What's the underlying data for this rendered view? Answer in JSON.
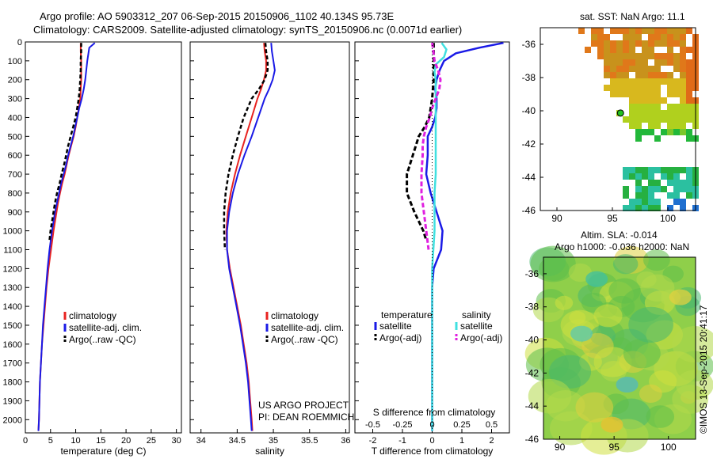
{
  "header": {
    "line1": "Argo profile: AO 5903312_207 06-Sep-2015 20150906_1102 40.134S 95.73E",
    "line2": "Climatology: CARS2009. Satellite-adjusted climatology: synTS_20150906.nc (0.0071d earlier)"
  },
  "panel_titles": {
    "sst": "sat. SST: NaN Argo: 11.1",
    "sla_line1": "Altim. SLA: -0.014",
    "sla_line2": "Argo h1000: -0.036 h2000: NaN"
  },
  "credits": {
    "project": "US ARGO PROJECT",
    "pi": "PI: DEAN ROEMMICH",
    "imos": "©IMOS 13-Sep-2015 20:41:17"
  },
  "colors": {
    "climatology": "#e8221f",
    "satellite": "#1a1ae6",
    "argo": "#000000",
    "sal_satellite": "#40e0e0",
    "sal_argo": "#e020e0"
  },
  "chart_data": [
    {
      "type": "line",
      "xlabel": "temperature (deg C)",
      "xlim": [
        0,
        31
      ],
      "xticks": [
        "0",
        "5",
        "10",
        "15",
        "20",
        "25",
        "30"
      ],
      "ylim": [
        2070,
        0
      ],
      "yticks": [
        "0",
        "100",
        "200",
        "300",
        "400",
        "500",
        "600",
        "700",
        "800",
        "900",
        "1000",
        "1100",
        "1200",
        "1300",
        "1400",
        "1500",
        "1600",
        "1700",
        "1800",
        "1900",
        "2000"
      ],
      "legend": [
        "climatology",
        "satellite-adj. clim.",
        "Argo(..raw -QC)"
      ],
      "series": [
        {
          "name": "climatology",
          "y": [
            5,
            50,
            100,
            150,
            200,
            250,
            300,
            350,
            400,
            450,
            500,
            550,
            600,
            650,
            700,
            750,
            800,
            850,
            900,
            950,
            1000,
            1100,
            1200,
            1300,
            1400,
            1500,
            1600,
            1700,
            1800,
            1900,
            2000,
            2060
          ],
          "x": [
            11.0,
            11.0,
            11.1,
            11.1,
            11.1,
            11.0,
            10.9,
            10.6,
            10.3,
            10.0,
            9.6,
            9.1,
            8.6,
            8.2,
            7.8,
            7.3,
            6.9,
            6.5,
            6.2,
            5.9,
            5.6,
            5.1,
            4.6,
            4.2,
            3.9,
            3.6,
            3.3,
            3.1,
            2.9,
            2.8,
            2.7,
            2.6
          ]
        },
        {
          "name": "satellite-adj. clim.",
          "y": [
            5,
            30,
            100,
            150,
            200,
            250,
            300,
            350,
            400,
            450,
            500,
            550,
            600,
            650,
            700,
            750,
            800,
            850,
            900,
            950,
            1000,
            1100,
            1200,
            1300,
            1400,
            1500,
            1600,
            1700,
            1800,
            1900,
            2000,
            2060
          ],
          "x": [
            13.8,
            12.7,
            12.3,
            12.1,
            11.9,
            11.6,
            11.2,
            10.7,
            10.3,
            9.9,
            9.5,
            9.0,
            8.5,
            8.1,
            7.6,
            7.1,
            6.7,
            6.3,
            5.9,
            5.6,
            5.3,
            4.8,
            4.4,
            4.1,
            3.8,
            3.5,
            3.3,
            3.1,
            2.9,
            2.8,
            2.7,
            2.6
          ]
        },
        {
          "name": "Argo(..raw -QC)",
          "y": [
            5,
            50,
            100,
            150,
            200,
            250,
            300,
            350,
            400,
            450,
            500,
            550,
            600,
            650,
            700,
            750,
            800,
            850,
            900,
            950,
            1000,
            1050
          ],
          "x": [
            11.1,
            11.1,
            11.0,
            11.0,
            10.9,
            10.8,
            10.6,
            10.3,
            10.0,
            9.5,
            9.0,
            8.5,
            8.1,
            7.7,
            7.2,
            6.8,
            6.3,
            5.9,
            5.6,
            5.3,
            5.0,
            4.8
          ]
        }
      ]
    },
    {
      "type": "line",
      "xlabel": "salinity",
      "xlim": [
        33.85,
        36.05
      ],
      "xticks": [
        "34",
        "34.5",
        "35",
        "35.5",
        "36"
      ],
      "ylim": [
        2070,
        0
      ],
      "legend": [
        "climatology",
        "satellite-adj. clim.",
        "Argo(..raw -QC)"
      ],
      "series": [
        {
          "name": "climatology",
          "y": [
            5,
            50,
            100,
            150,
            200,
            250,
            300,
            400,
            500,
            600,
            700,
            800,
            900,
            1000,
            1100,
            1200,
            1300,
            1400,
            1500,
            1600,
            1700,
            1800,
            1900,
            2000,
            2060
          ],
          "x": [
            34.87,
            34.88,
            34.9,
            34.9,
            34.87,
            34.83,
            34.78,
            34.7,
            34.62,
            34.54,
            34.47,
            34.41,
            34.37,
            34.35,
            34.36,
            34.4,
            34.45,
            34.5,
            34.55,
            34.59,
            34.63,
            34.66,
            34.68,
            34.7,
            34.71
          ]
        },
        {
          "name": "satellite-adj. clim.",
          "y": [
            5,
            50,
            100,
            150,
            200,
            250,
            300,
            400,
            500,
            600,
            700,
            800,
            900,
            1000,
            1100,
            1200,
            1300,
            1400,
            1500,
            1600,
            1700,
            1800,
            1900,
            2000,
            2060
          ],
          "x": [
            34.97,
            34.98,
            35.0,
            35.02,
            34.99,
            34.94,
            34.88,
            34.79,
            34.7,
            34.6,
            34.51,
            34.44,
            34.39,
            34.36,
            34.36,
            34.39,
            34.44,
            34.49,
            34.54,
            34.58,
            34.62,
            34.65,
            34.67,
            34.69,
            34.7
          ]
        },
        {
          "name": "Argo(..raw -QC)",
          "y": [
            5,
            50,
            100,
            150,
            200,
            250,
            300,
            400,
            500,
            600,
            700,
            800,
            900,
            1000,
            1100
          ],
          "x": [
            34.89,
            34.9,
            34.92,
            34.92,
            34.88,
            34.8,
            34.7,
            34.59,
            34.51,
            34.44,
            34.38,
            34.34,
            34.32,
            34.32,
            34.33
          ]
        }
      ]
    },
    {
      "type": "line",
      "xlabel": "T difference from climatology",
      "xlabel_top": "S difference from climatology",
      "xlim": [
        -2.6,
        2.6
      ],
      "xticks": [
        "-2",
        "-1",
        "0",
        "1",
        "2"
      ],
      "xticks_top": [
        "-0.5",
        "-0.25",
        "0",
        "0.25",
        "0.5"
      ],
      "ylim": [
        2070,
        0
      ],
      "legend_temperature": {
        "title": "temperature",
        "items": [
          "satellite",
          "Argo(-adj)"
        ]
      },
      "legend_salinity": {
        "title": "salinity",
        "items": [
          "satellite",
          "Argo(-adj)"
        ]
      },
      "series": [
        {
          "name": "temperature satellite",
          "y": [
            5,
            30,
            60,
            100,
            150,
            200,
            250,
            300,
            350,
            400,
            450,
            500,
            600,
            700,
            800,
            900,
            1000,
            1100,
            1200,
            1300,
            1400,
            1600,
            1800,
            2000,
            2060
          ],
          "x": [
            2.4,
            1.6,
            0.8,
            0.4,
            0.25,
            0.15,
            0.1,
            0.15,
            0.15,
            0.1,
            0.0,
            -0.15,
            -0.15,
            -0.2,
            -0.05,
            0.15,
            0.35,
            0.3,
            0.05,
            0.0,
            0.0,
            0.0,
            0.0,
            0.0,
            0.0
          ]
        },
        {
          "name": "temperature Argo(-adj)",
          "y": [
            5,
            50,
            100,
            150,
            200,
            300,
            400,
            450,
            500,
            600,
            700,
            800,
            900,
            1000,
            1050
          ],
          "x": [
            0.05,
            0.05,
            0.05,
            0.05,
            0.05,
            0.0,
            -0.1,
            -0.25,
            -0.45,
            -0.65,
            -0.85,
            -0.85,
            -0.6,
            -0.3,
            -0.2
          ]
        },
        {
          "name": "salinity satellite",
          "y": [
            5,
            40,
            80,
            120,
            160,
            200,
            300,
            400,
            500,
            600,
            700,
            800,
            900,
            1000,
            1100,
            1200,
            1400,
            1600,
            2000,
            2060
          ],
          "x": [
            0.08,
            0.12,
            0.1,
            0.03,
            0.02,
            0.03,
            0.03,
            0.03,
            0.03,
            0.03,
            0.03,
            0.02,
            0.02,
            0.02,
            0.01,
            0.0,
            0.0,
            0.0,
            0.0,
            0.0
          ]
        },
        {
          "name": "salinity Argo(-adj)",
          "y": [
            5,
            50,
            100,
            150,
            200,
            250,
            300,
            350,
            400,
            450,
            500,
            550,
            600,
            700,
            800,
            900,
            1000,
            1050,
            1100
          ],
          "x": [
            0.0,
            0.01,
            0.02,
            0.05,
            0.07,
            0.06,
            0.03,
            0.0,
            -0.02,
            -0.05,
            -0.07,
            -0.08,
            -0.08,
            -0.09,
            -0.09,
            -0.07,
            -0.05,
            -0.04,
            -0.03
          ]
        }
      ]
    },
    {
      "type": "heatmap",
      "title": "sat. SST: NaN Argo: 11.1",
      "xlim": [
        88.5,
        102.5
      ],
      "ylim": [
        -46,
        -35
      ],
      "xticks": [
        "90",
        "95",
        "100"
      ],
      "yticks": [
        "-36",
        "-38",
        "-40",
        "-42",
        "-44",
        "-46"
      ],
      "argo_position": {
        "lon": 95.73,
        "lat": -40.134
      }
    },
    {
      "type": "heatmap",
      "title": "Altim. SLA: -0.014",
      "subtitle": "Argo h1000: -0.036 h2000: NaN",
      "xlim": [
        88.5,
        102.5
      ],
      "ylim": [
        -46,
        -35
      ],
      "xticks": [
        "90",
        "95",
        "100"
      ],
      "yticks": [
        "-36",
        "-38",
        "-40",
        "-42",
        "-44",
        "-46"
      ]
    }
  ]
}
